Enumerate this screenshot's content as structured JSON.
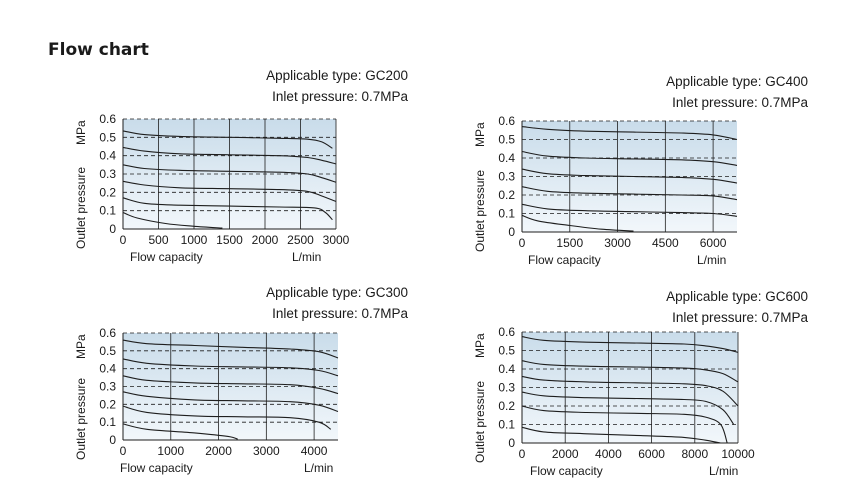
{
  "page": {
    "title": "Flow chart"
  },
  "style": {
    "plot_fill_top": "#c9dcea",
    "plot_fill_bottom": "#f2f7fb",
    "curve_color": "#1e1e1e",
    "grid_color": "#1e1e1e"
  },
  "chart_data": [
    {
      "id": "gc200",
      "type": "line",
      "type_label": "Applicable type: GC200",
      "inlet_label": "Inlet pressure: 0.7MPa",
      "xlabel": "Flow capacity",
      "xunit": "L/min",
      "ylabel": "Outlet pressure",
      "yunit": "MPa",
      "xlim": [
        0,
        3000
      ],
      "ylim": [
        0,
        0.6
      ],
      "xticks": [
        0,
        500,
        1000,
        1500,
        2000,
        2500,
        3000
      ],
      "yticks": [
        0,
        0.1,
        0.2,
        0.3,
        0.4,
        0.5,
        0.6
      ],
      "grid": {
        "vertical": "solid",
        "horizontal": "dashed"
      },
      "series": [
        {
          "x": [
            0,
            200,
            600,
            1000,
            1400
          ],
          "y": [
            0.09,
            0.06,
            0.03,
            0.015,
            0.005
          ]
        },
        {
          "x": [
            0,
            300,
            800,
            1500,
            2200,
            2700,
            2850,
            2950
          ],
          "y": [
            0.17,
            0.14,
            0.13,
            0.125,
            0.12,
            0.115,
            0.09,
            0.05
          ]
        },
        {
          "x": [
            0,
            300,
            800,
            1500,
            2200,
            2600,
            2800,
            3000
          ],
          "y": [
            0.26,
            0.24,
            0.225,
            0.22,
            0.215,
            0.205,
            0.18,
            0.15
          ]
        },
        {
          "x": [
            0,
            300,
            800,
            1500,
            2200,
            2600,
            2800,
            3000
          ],
          "y": [
            0.35,
            0.33,
            0.32,
            0.315,
            0.31,
            0.3,
            0.28,
            0.255
          ]
        },
        {
          "x": [
            0,
            300,
            800,
            1500,
            2200,
            2600,
            2800,
            3000
          ],
          "y": [
            0.445,
            0.425,
            0.41,
            0.405,
            0.4,
            0.39,
            0.375,
            0.355
          ]
        },
        {
          "x": [
            0,
            300,
            800,
            1500,
            2200,
            2600,
            2800,
            2950
          ],
          "y": [
            0.535,
            0.515,
            0.505,
            0.5,
            0.495,
            0.49,
            0.475,
            0.44
          ]
        }
      ]
    },
    {
      "id": "gc400",
      "type": "line",
      "type_label": "Applicable type: GC400",
      "inlet_label": "Inlet pressure: 0.7MPa",
      "xlabel": "Flow capacity",
      "xunit": "L/min",
      "ylabel": "Outlet pressure",
      "yunit": "MPa",
      "xlim": [
        0,
        6750
      ],
      "ylim": [
        0,
        0.6
      ],
      "xticks": [
        0,
        1500,
        3000,
        4500,
        6000
      ],
      "yticks": [
        0,
        0.1,
        0.2,
        0.3,
        0.4,
        0.5,
        0.6
      ],
      "grid": {
        "vertical": "solid",
        "horizontal": "dashed"
      },
      "series": [
        {
          "x": [
            0,
            500,
            1500,
            2500,
            3500
          ],
          "y": [
            0.09,
            0.06,
            0.035,
            0.015,
            0.005
          ]
        },
        {
          "x": [
            0,
            800,
            2000,
            3500,
            5000,
            6000,
            6750
          ],
          "y": [
            0.15,
            0.125,
            0.115,
            0.11,
            0.105,
            0.1,
            0.085
          ]
        },
        {
          "x": [
            0,
            800,
            2000,
            3500,
            5000,
            6000,
            6750
          ],
          "y": [
            0.245,
            0.22,
            0.21,
            0.205,
            0.2,
            0.195,
            0.175
          ]
        },
        {
          "x": [
            0,
            800,
            2000,
            3500,
            5000,
            6000,
            6750
          ],
          "y": [
            0.34,
            0.315,
            0.305,
            0.3,
            0.295,
            0.285,
            0.265
          ]
        },
        {
          "x": [
            0,
            800,
            2000,
            3500,
            5000,
            6000,
            6750
          ],
          "y": [
            0.435,
            0.41,
            0.4,
            0.395,
            0.39,
            0.38,
            0.36
          ]
        },
        {
          "x": [
            0,
            800,
            2000,
            3500,
            5000,
            6000,
            6750
          ],
          "y": [
            0.57,
            0.555,
            0.545,
            0.54,
            0.535,
            0.525,
            0.5
          ]
        }
      ]
    },
    {
      "id": "gc300",
      "type": "line",
      "type_label": "Applicable type: GC300",
      "inlet_label": "Inlet pressure: 0.7MPa",
      "xlabel": "Flow capacity",
      "xunit": "L/min",
      "ylabel": "Outlet pressure",
      "yunit": "MPa",
      "xlim": [
        0,
        4500
      ],
      "ylim": [
        0,
        0.6
      ],
      "xticks": [
        0,
        1000,
        2000,
        3000,
        4000
      ],
      "yticks": [
        0,
        0.1,
        0.2,
        0.3,
        0.4,
        0.5,
        0.6
      ],
      "grid": {
        "vertical": "solid",
        "horizontal": "dashed"
      },
      "series": [
        {
          "x": [
            0,
            500,
            1500,
            2200,
            2400
          ],
          "y": [
            0.09,
            0.06,
            0.04,
            0.02,
            0.005
          ]
        },
        {
          "x": [
            0,
            500,
            1500,
            2500,
            3500,
            4100,
            4350
          ],
          "y": [
            0.19,
            0.155,
            0.135,
            0.13,
            0.125,
            0.1,
            0.06
          ]
        },
        {
          "x": [
            0,
            500,
            1500,
            2500,
            3500,
            4100,
            4500
          ],
          "y": [
            0.27,
            0.245,
            0.225,
            0.22,
            0.215,
            0.195,
            0.16
          ]
        },
        {
          "x": [
            0,
            500,
            1500,
            2500,
            3500,
            4100,
            4500
          ],
          "y": [
            0.36,
            0.335,
            0.32,
            0.315,
            0.31,
            0.29,
            0.26
          ]
        },
        {
          "x": [
            0,
            500,
            1500,
            2500,
            3500,
            4100,
            4500
          ],
          "y": [
            0.455,
            0.43,
            0.415,
            0.41,
            0.405,
            0.39,
            0.36
          ]
        },
        {
          "x": [
            0,
            500,
            1500,
            2500,
            3500,
            4100,
            4500
          ],
          "y": [
            0.56,
            0.54,
            0.53,
            0.52,
            0.51,
            0.495,
            0.46
          ]
        }
      ]
    },
    {
      "id": "gc600",
      "type": "line",
      "type_label": "Applicable type: GC600",
      "inlet_label": "Inlet pressure: 0.7MPa",
      "xlabel": "Flow capacity",
      "xunit": "L/min",
      "ylabel": "Outlet pressure",
      "yunit": "MPa",
      "xlim": [
        0,
        10000
      ],
      "ylim": [
        0,
        0.6
      ],
      "xticks": [
        0,
        2000,
        4000,
        6000,
        8000,
        10000
      ],
      "yticks": [
        0,
        0.1,
        0.2,
        0.3,
        0.4,
        0.5,
        0.6
      ],
      "grid": {
        "vertical": "solid",
        "horizontal": "dashed"
      },
      "series": [
        {
          "x": [
            0,
            1000,
            3000,
            5500,
            7500,
            8500,
            9200
          ],
          "y": [
            0.085,
            0.06,
            0.05,
            0.04,
            0.03,
            0.015,
            0.0
          ]
        },
        {
          "x": [
            0,
            1000,
            3000,
            5500,
            7500,
            8500,
            9200,
            9500
          ],
          "y": [
            0.2,
            0.175,
            0.165,
            0.16,
            0.155,
            0.14,
            0.1,
            0.0
          ]
        },
        {
          "x": [
            0,
            1000,
            3000,
            5500,
            7500,
            8500,
            9300,
            9800
          ],
          "y": [
            0.275,
            0.255,
            0.245,
            0.24,
            0.235,
            0.225,
            0.18,
            0.1
          ]
        },
        {
          "x": [
            0,
            1000,
            3000,
            5500,
            7500,
            8500,
            9300,
            10000
          ],
          "y": [
            0.36,
            0.34,
            0.33,
            0.325,
            0.32,
            0.31,
            0.28,
            0.2
          ]
        },
        {
          "x": [
            0,
            1000,
            3000,
            5500,
            7500,
            8500,
            9300,
            10000
          ],
          "y": [
            0.445,
            0.425,
            0.415,
            0.41,
            0.405,
            0.395,
            0.375,
            0.33
          ]
        },
        {
          "x": [
            0,
            1000,
            3000,
            5500,
            7500,
            8500,
            9300,
            10000
          ],
          "y": [
            0.575,
            0.555,
            0.545,
            0.54,
            0.535,
            0.525,
            0.51,
            0.49
          ]
        }
      ]
    }
  ]
}
